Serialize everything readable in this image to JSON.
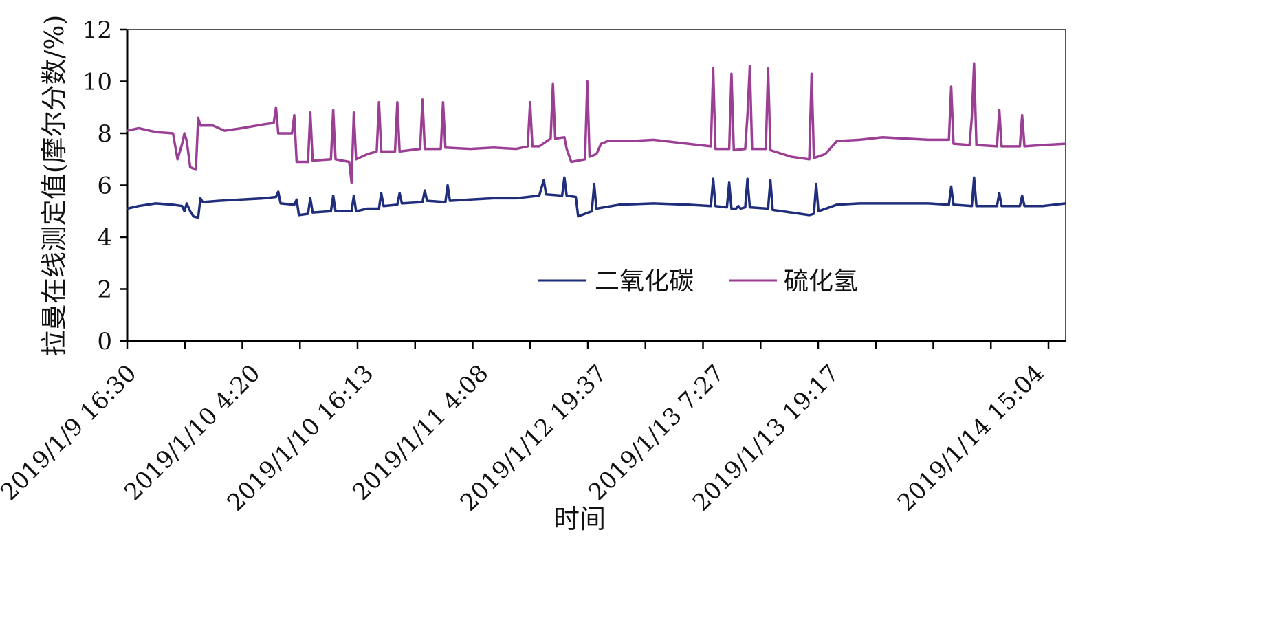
{
  "chart_data": {
    "type": "line",
    "xlabel": "时间",
    "ylabel": "拉曼在线测定值(摩尔分数/%)",
    "ylim": [
      0,
      12
    ],
    "yticks": [
      0,
      2,
      4,
      6,
      8,
      10,
      12
    ],
    "x_tick_labels": [
      "2019/1/9 16:30",
      "2019/1/10 4:20",
      "2019/1/10 16:13",
      "2019/1/11 4:08",
      "2019/1/12 19:37",
      "2019/1/13 7:27",
      "2019/1/13 19:17",
      "2019/1/14 15:04"
    ],
    "x_tick_label_positions": [
      0,
      1,
      2,
      3,
      4,
      5,
      6,
      7
    ],
    "xlim": [
      0,
      8.2
    ],
    "grid": false,
    "legend_position": "inside-lower-right",
    "series": [
      {
        "name": "二氧化碳",
        "color": "#1f2d7a",
        "points": [
          [
            0.0,
            5.1
          ],
          [
            0.1,
            5.2
          ],
          [
            0.25,
            5.3
          ],
          [
            0.4,
            5.25
          ],
          [
            0.48,
            5.2
          ],
          [
            0.5,
            5.0
          ],
          [
            0.52,
            5.3
          ],
          [
            0.55,
            5.0
          ],
          [
            0.58,
            4.8
          ],
          [
            0.62,
            4.75
          ],
          [
            0.64,
            5.5
          ],
          [
            0.66,
            5.35
          ],
          [
            0.8,
            5.4
          ],
          [
            1.0,
            5.45
          ],
          [
            1.2,
            5.5
          ],
          [
            1.3,
            5.55
          ],
          [
            1.32,
            5.75
          ],
          [
            1.34,
            5.3
          ],
          [
            1.46,
            5.25
          ],
          [
            1.48,
            5.45
          ],
          [
            1.5,
            4.85
          ],
          [
            1.58,
            4.9
          ],
          [
            1.6,
            5.5
          ],
          [
            1.62,
            4.95
          ],
          [
            1.78,
            5.0
          ],
          [
            1.8,
            5.6
          ],
          [
            1.82,
            5.0
          ],
          [
            1.96,
            5.0
          ],
          [
            1.98,
            5.6
          ],
          [
            2.0,
            5.0
          ],
          [
            2.1,
            5.1
          ],
          [
            2.2,
            5.1
          ],
          [
            2.22,
            5.7
          ],
          [
            2.24,
            5.2
          ],
          [
            2.36,
            5.25
          ],
          [
            2.38,
            5.7
          ],
          [
            2.4,
            5.3
          ],
          [
            2.58,
            5.35
          ],
          [
            2.6,
            5.8
          ],
          [
            2.62,
            5.4
          ],
          [
            2.78,
            5.35
          ],
          [
            2.8,
            6.0
          ],
          [
            2.82,
            5.4
          ],
          [
            3.0,
            5.45
          ],
          [
            3.2,
            5.5
          ],
          [
            3.4,
            5.5
          ],
          [
            3.6,
            5.6
          ],
          [
            3.64,
            6.2
          ],
          [
            3.66,
            5.65
          ],
          [
            3.8,
            5.6
          ],
          [
            3.82,
            6.3
          ],
          [
            3.84,
            5.6
          ],
          [
            3.92,
            5.55
          ],
          [
            3.94,
            4.8
          ],
          [
            4.0,
            4.9
          ],
          [
            4.06,
            5.0
          ],
          [
            4.08,
            6.05
          ],
          [
            4.1,
            5.1
          ],
          [
            4.3,
            5.25
          ],
          [
            4.6,
            5.3
          ],
          [
            4.9,
            5.25
          ],
          [
            5.1,
            5.2
          ],
          [
            5.12,
            6.25
          ],
          [
            5.14,
            5.2
          ],
          [
            5.24,
            5.15
          ],
          [
            5.26,
            6.1
          ],
          [
            5.28,
            5.1
          ],
          [
            5.32,
            5.1
          ],
          [
            5.34,
            5.2
          ],
          [
            5.36,
            5.1
          ],
          [
            5.4,
            5.15
          ],
          [
            5.42,
            6.25
          ],
          [
            5.44,
            5.15
          ],
          [
            5.6,
            5.1
          ],
          [
            5.62,
            6.2
          ],
          [
            5.64,
            5.05
          ],
          [
            5.8,
            4.95
          ],
          [
            5.96,
            4.85
          ],
          [
            6.0,
            4.9
          ],
          [
            6.02,
            6.05
          ],
          [
            6.04,
            5.0
          ],
          [
            6.2,
            5.25
          ],
          [
            6.4,
            5.3
          ],
          [
            6.7,
            5.3
          ],
          [
            7.0,
            5.3
          ],
          [
            7.18,
            5.25
          ],
          [
            7.2,
            5.95
          ],
          [
            7.22,
            5.25
          ],
          [
            7.38,
            5.2
          ],
          [
            7.4,
            6.3
          ],
          [
            7.42,
            5.2
          ],
          [
            7.6,
            5.2
          ],
          [
            7.62,
            5.7
          ],
          [
            7.64,
            5.2
          ],
          [
            7.8,
            5.2
          ],
          [
            7.82,
            5.6
          ],
          [
            7.84,
            5.2
          ],
          [
            8.0,
            5.2
          ],
          [
            8.2,
            5.3
          ]
        ]
      },
      {
        "name": "硫化氢",
        "color": "#9b3f95",
        "points": [
          [
            0.0,
            8.1
          ],
          [
            0.1,
            8.2
          ],
          [
            0.25,
            8.05
          ],
          [
            0.4,
            8.0
          ],
          [
            0.44,
            7.0
          ],
          [
            0.48,
            7.6
          ],
          [
            0.5,
            8.0
          ],
          [
            0.52,
            7.7
          ],
          [
            0.55,
            6.7
          ],
          [
            0.6,
            6.6
          ],
          [
            0.62,
            8.6
          ],
          [
            0.64,
            8.3
          ],
          [
            0.75,
            8.3
          ],
          [
            0.85,
            8.1
          ],
          [
            1.0,
            8.2
          ],
          [
            1.2,
            8.35
          ],
          [
            1.28,
            8.4
          ],
          [
            1.3,
            9.0
          ],
          [
            1.32,
            8.0
          ],
          [
            1.44,
            8.0
          ],
          [
            1.46,
            8.7
          ],
          [
            1.48,
            6.9
          ],
          [
            1.58,
            6.9
          ],
          [
            1.6,
            8.8
          ],
          [
            1.62,
            6.95
          ],
          [
            1.78,
            7.0
          ],
          [
            1.8,
            8.9
          ],
          [
            1.82,
            7.0
          ],
          [
            1.94,
            6.9
          ],
          [
            1.96,
            6.1
          ],
          [
            1.98,
            8.8
          ],
          [
            2.0,
            7.0
          ],
          [
            2.1,
            7.2
          ],
          [
            2.18,
            7.3
          ],
          [
            2.2,
            9.2
          ],
          [
            2.22,
            7.3
          ],
          [
            2.34,
            7.3
          ],
          [
            2.36,
            9.2
          ],
          [
            2.38,
            7.3
          ],
          [
            2.56,
            7.4
          ],
          [
            2.58,
            9.3
          ],
          [
            2.6,
            7.4
          ],
          [
            2.74,
            7.4
          ],
          [
            2.76,
            9.2
          ],
          [
            2.78,
            7.45
          ],
          [
            3.0,
            7.4
          ],
          [
            3.2,
            7.45
          ],
          [
            3.4,
            7.4
          ],
          [
            3.5,
            7.5
          ],
          [
            3.52,
            9.2
          ],
          [
            3.54,
            7.5
          ],
          [
            3.6,
            7.5
          ],
          [
            3.7,
            7.8
          ],
          [
            3.72,
            9.9
          ],
          [
            3.74,
            7.8
          ],
          [
            3.82,
            7.85
          ],
          [
            3.84,
            7.4
          ],
          [
            3.88,
            6.9
          ],
          [
            4.0,
            7.0
          ],
          [
            4.02,
            10.0
          ],
          [
            4.04,
            7.1
          ],
          [
            4.1,
            7.2
          ],
          [
            4.14,
            7.6
          ],
          [
            4.2,
            7.7
          ],
          [
            4.4,
            7.7
          ],
          [
            4.6,
            7.75
          ],
          [
            4.8,
            7.65
          ],
          [
            5.0,
            7.55
          ],
          [
            5.1,
            7.5
          ],
          [
            5.12,
            10.5
          ],
          [
            5.14,
            7.4
          ],
          [
            5.26,
            7.4
          ],
          [
            5.28,
            10.3
          ],
          [
            5.3,
            7.35
          ],
          [
            5.4,
            7.4
          ],
          [
            5.42,
            8.7
          ],
          [
            5.44,
            10.6
          ],
          [
            5.46,
            7.4
          ],
          [
            5.58,
            7.4
          ],
          [
            5.6,
            10.5
          ],
          [
            5.62,
            7.35
          ],
          [
            5.8,
            7.1
          ],
          [
            5.96,
            7.0
          ],
          [
            5.98,
            10.3
          ],
          [
            6.0,
            7.05
          ],
          [
            6.1,
            7.2
          ],
          [
            6.2,
            7.7
          ],
          [
            6.4,
            7.75
          ],
          [
            6.6,
            7.85
          ],
          [
            6.8,
            7.8
          ],
          [
            7.0,
            7.75
          ],
          [
            7.18,
            7.75
          ],
          [
            7.2,
            9.8
          ],
          [
            7.22,
            7.6
          ],
          [
            7.36,
            7.55
          ],
          [
            7.38,
            8.6
          ],
          [
            7.4,
            10.7
          ],
          [
            7.42,
            7.55
          ],
          [
            7.6,
            7.5
          ],
          [
            7.62,
            8.9
          ],
          [
            7.64,
            7.5
          ],
          [
            7.8,
            7.5
          ],
          [
            7.82,
            8.7
          ],
          [
            7.84,
            7.5
          ],
          [
            8.0,
            7.55
          ],
          [
            8.2,
            7.6
          ]
        ]
      }
    ]
  }
}
